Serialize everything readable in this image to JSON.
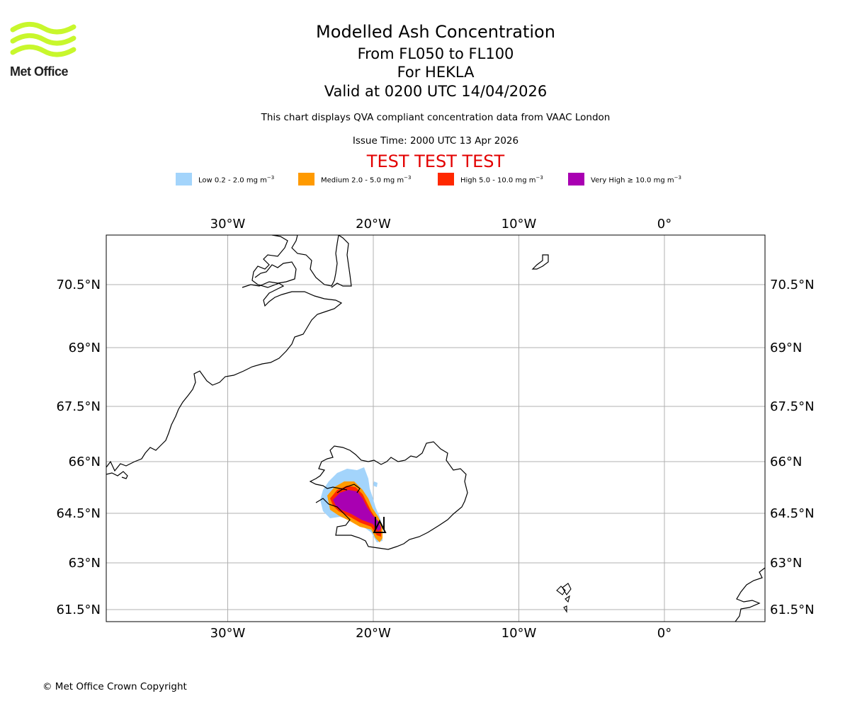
{
  "header": {
    "logo_text": "Met Office",
    "title": "Modelled Ash Concentration",
    "levels": "From FL050 to FL100",
    "volcano": "For HEKLA",
    "valid": "Valid at 0200 UTC 14/04/2026",
    "description": "This chart displays QVA compliant concentration data from VAAC London",
    "issue_time": "Issue Time: 2000 UTC 13 Apr 2026",
    "test_banner": "TEST TEST TEST"
  },
  "legend": [
    {
      "label": "Low 0.2 - 2.0 mg m",
      "unit_exp": "−3",
      "color": "#a3d4fb"
    },
    {
      "label": "Medium 2.0 - 5.0 mg m",
      "unit_exp": "−3",
      "color": "#ff9a00"
    },
    {
      "label": "High 5.0 - 10.0 mg m",
      "unit_exp": "−3",
      "color": "#ff2800"
    },
    {
      "label": "Very High ≥ 10.0 mg m",
      "unit_exp": "−3",
      "color": "#a900b2"
    }
  ],
  "axes": {
    "lon_ticks": [
      {
        "lon": -30,
        "label": "30°W"
      },
      {
        "lon": -20,
        "label": "20°W"
      },
      {
        "lon": -10,
        "label": "10°W"
      },
      {
        "lon": 0,
        "label": "0°"
      }
    ],
    "lat_ticks": [
      {
        "lat": 70.5,
        "label": "70.5°N"
      },
      {
        "lat": 69,
        "label": "69°N"
      },
      {
        "lat": 67.5,
        "label": "67.5°N"
      },
      {
        "lat": 66,
        "label": "66°N"
      },
      {
        "lat": 64.5,
        "label": "64.5°N"
      },
      {
        "lat": 63,
        "label": "63°N"
      },
      {
        "lat": 61.5,
        "label": "61.5°N"
      }
    ],
    "lon_range": [
      -38.4,
      6.9
    ],
    "lat_range": [
      61.1,
      71.6
    ]
  },
  "volcano_marker": {
    "name": "HEKLA",
    "lon": -19.7,
    "lat": 64.0
  },
  "footer": {
    "copyright": "© Met Office Crown Copyright"
  }
}
